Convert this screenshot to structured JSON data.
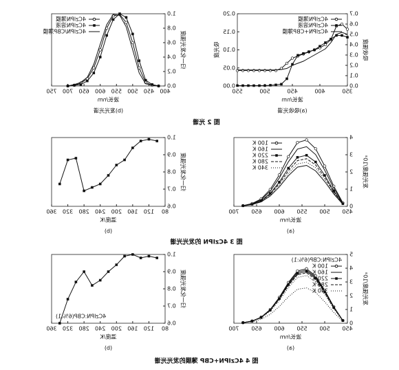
{
  "chart_data": [
    {
      "type": "line",
      "caption": "(a)吸收光谱",
      "xlabel": "波长/nm",
      "ylabel": "吸收强度",
      "y2label": "吸光度",
      "legend": "upper left",
      "x": [
        350,
        360,
        370,
        380,
        390,
        400,
        410,
        420,
        430,
        440,
        450,
        460,
        470,
        480,
        490,
        500,
        510,
        520,
        530,
        540,
        550
      ],
      "xlim": [
        350,
        550
      ],
      "xticks": [
        350,
        400,
        450,
        500,
        550
      ],
      "ylim": [
        0,
        0.7
      ],
      "yticks": [
        {
          "value": 0,
          "label": "0.0"
        },
        0.1,
        0.2,
        0.3,
        0.4,
        0.5,
        0.6,
        0.7
      ],
      "y2lim": [
        0,
        0.2
      ],
      "y2ticks": [
        {
          "value": 0,
          "label": "0.00"
        },
        {
          "value": 0.05,
          "label": "0.05"
        },
        {
          "value": 0.1,
          "label": "0.10"
        },
        {
          "value": 0.15,
          "label": "0.15"
        },
        {
          "value": 0.2,
          "label": "0.20"
        }
      ],
      "series": [
        {
          "name": "4CzIPN薄膜",
          "marker": "circle",
          "values": [
            0.55,
            0.6,
            0.58,
            0.45,
            0.4,
            0.37,
            0.35,
            0.33,
            0.31,
            0.29,
            0.27,
            0.22,
            0.17,
            0.15,
            0.15,
            0.15,
            0.15,
            0.15,
            0.15,
            0.15,
            0.15
          ]
        },
        {
          "name": "4CzIPN溶液",
          "marker": "square",
          "axis": "y2",
          "values": [
            0.135,
            0.14,
            0.14,
            0.13,
            0.12,
            0.11,
            0.1,
            0.095,
            0.09,
            0.085,
            0.06,
            0.02,
            0.005,
            0.003,
            0.002,
            0.001,
            0.001,
            0.001,
            0.001,
            0.001,
            0.001
          ]
        },
        {
          "name": "4CzIPN+CBP薄膜",
          "marker": "none",
          "values": [
            0.5,
            0.52,
            0.5,
            0.42,
            0.36,
            0.33,
            0.3,
            0.27,
            0.24,
            0.22,
            0.2,
            0.17,
            0.16,
            0.155,
            0.155,
            0.155,
            0.155,
            0.155,
            0.155,
            0.155,
            0.155
          ]
        }
      ]
    },
    {
      "type": "line",
      "caption": "(b)发光光谱",
      "xlabel": "波长/nm",
      "ylabel": "归一化发光强度",
      "legend": "upper right",
      "x": [
        420,
        440,
        460,
        480,
        500,
        520,
        540,
        560,
        580,
        600,
        620,
        640,
        660,
        680,
        700
      ],
      "xlim": [
        400,
        750
      ],
      "xticks": [
        400,
        450,
        500,
        550,
        600,
        650,
        700,
        750
      ],
      "ylim": [
        0,
        1
      ],
      "yticks": [
        {
          "value": 0,
          "label": "0.0"
        },
        0.2,
        0.4,
        0.6,
        0.8,
        {
          "value": 1,
          "label": "1.0"
        }
      ],
      "series": [
        {
          "name": "4CzIPN薄膜",
          "marker": "circle",
          "values": [
            0,
            0.01,
            0.05,
            0.25,
            0.6,
            0.88,
            0.99,
            0.97,
            0.8,
            0.5,
            0.25,
            0.1,
            0.04,
            0.01,
            0
          ]
        },
        {
          "name": "4CzIPN溶液",
          "marker": "square",
          "values": [
            0,
            0.02,
            0.08,
            0.35,
            0.72,
            0.95,
            1,
            0.92,
            0.7,
            0.4,
            0.18,
            0.07,
            0.02,
            0.01,
            0
          ]
        },
        {
          "name": "4CzIPN/CBP薄膜",
          "marker": "none",
          "values": [
            0,
            0.01,
            0.03,
            0.18,
            0.5,
            0.82,
            0.98,
            0.99,
            0.85,
            0.58,
            0.3,
            0.12,
            0.05,
            0.02,
            0
          ]
        }
      ]
    },
    {
      "type": "line",
      "caption": "(a)",
      "xlabel": "波长/nm",
      "ylabel": "发光强度/10³",
      "legend": "upper right",
      "x": [
        460,
        480,
        500,
        520,
        540,
        560,
        580,
        600,
        620,
        640,
        660,
        680
      ],
      "xlim": [
        450,
        700
      ],
      "xticks": [
        450,
        500,
        550,
        600,
        650,
        700
      ],
      "ylim": [
        0,
        4
      ],
      "yticks": [
        0,
        1,
        2,
        3,
        4
      ],
      "series": [
        {
          "name": "100 K",
          "marker": "circle",
          "values": [
            0.2,
            1.17,
            2.34,
            3.35,
            3.86,
            3.71,
            2.89,
            1.83,
            0.98,
            0.43,
            0.16,
            0.04
          ]
        },
        {
          "name": "160 K",
          "marker": "none",
          "values": [
            0.18,
            1.05,
            2.1,
            3.01,
            3.47,
            3.33,
            2.59,
            1.65,
            0.88,
            0.39,
            0.14,
            0.04
          ]
        },
        {
          "name": "220 K",
          "marker": "square",
          "values": [
            0.15,
            0.9,
            1.8,
            2.58,
            2.97,
            2.85,
            2.22,
            1.41,
            0.75,
            0.33,
            0.12,
            0.03
          ]
        },
        {
          "name": "280 K",
          "marker": "none",
          "dash": "4 2",
          "values": [
            0.14,
            0.84,
            1.68,
            2.41,
            2.77,
            2.66,
            2.07,
            1.32,
            0.7,
            0.31,
            0.11,
            0.03
          ]
        },
        {
          "name": "340 K",
          "marker": "none",
          "dash": "1 2",
          "values": [
            0.13,
            0.78,
            1.56,
            2.24,
            2.57,
            2.47,
            1.92,
            1.22,
            0.65,
            0.29,
            0.1,
            0.03
          ]
        },
        {
          "name": "",
          "marker": "none",
          "values": [
            0.12,
            0.72,
            1.44,
            2.06,
            2.38,
            2.28,
            1.78,
            1.13,
            0.6,
            0.26,
            0.1,
            0.02
          ]
        }
      ]
    },
    {
      "type": "line",
      "caption": "(b)",
      "xlabel": "温度/K",
      "ylabel": "归一化发光强度",
      "x": [
        340,
        320,
        300,
        280,
        260,
        240,
        220,
        200,
        180,
        160,
        140,
        120,
        100
      ],
      "xlim": [
        80,
        360
      ],
      "xticks": [
        80,
        120,
        160,
        200,
        240,
        280,
        320,
        360
      ],
      "ylim": [
        0.6,
        1
      ],
      "yticks": [
        0.6,
        0.7,
        0.8,
        0.9,
        {
          "value": 1,
          "label": "1.0"
        }
      ],
      "series": [
        {
          "marker": "square",
          "values": [
            0.73,
            0.87,
            0.88,
            0.69,
            0.71,
            0.73,
            0.78,
            0.84,
            0.87,
            0.94,
            0.98,
            0.99,
            0.98
          ]
        }
      ]
    },
    {
      "type": "line",
      "caption": "(a)",
      "xlabel": "波长/nm",
      "ylabel": "发光强度/10³",
      "legend": "upper left",
      "legend_title": "4CzIPN:CBP(6%:1)",
      "x": [
        460,
        480,
        500,
        520,
        540,
        560,
        580,
        600,
        620,
        640,
        660,
        680
      ],
      "xlim": [
        450,
        700
      ],
      "xticks": [
        450,
        500,
        550,
        600,
        650,
        700
      ],
      "ylim": [
        0,
        5
      ],
      "yticks": [
        0,
        1,
        2,
        3,
        4,
        5
      ],
      "series": [
        {
          "name": "100 K",
          "marker": "circle",
          "values": [
            0.2,
            1.2,
            2.4,
            3.44,
            3.96,
            3.8,
            2.96,
            1.88,
            1,
            0.44,
            0.16,
            0.04
          ]
        },
        {
          "name": "160 K",
          "marker": "none",
          "values": [
            0.2,
            1.17,
            2.34,
            3.35,
            3.86,
            3.71,
            2.89,
            1.83,
            0.98,
            0.43,
            0.16,
            0.04
          ]
        },
        {
          "name": "220 K",
          "marker": "square",
          "values": [
            0.19,
            1.14,
            2.28,
            3.27,
            3.76,
            3.61,
            2.81,
            1.79,
            0.95,
            0.42,
            0.15,
            0.04
          ]
        },
        {
          "name": "280 K",
          "marker": "none",
          "dash": "4 2",
          "values": [
            0.19,
            1.11,
            2.22,
            3.18,
            3.66,
            3.52,
            2.74,
            1.74,
            0.93,
            0.41,
            0.15,
            0.04
          ]
        },
        {
          "name": "340 K",
          "marker": "none",
          "dash": "1 2",
          "values": [
            0.18,
            1.05,
            2.1,
            3.01,
            3.47,
            3.33,
            2.59,
            1.65,
            0.88,
            0.39,
            0.14,
            0.04
          ]
        },
        {
          "marker": "none",
          "dash": "1 2",
          "values": [
            0.13,
            0.78,
            1.56,
            2.24,
            2.57,
            2.47,
            1.92,
            1.22,
            0.65,
            0.29,
            0.1,
            0.03
          ]
        }
      ]
    },
    {
      "type": "line",
      "caption": "(b)",
      "xlabel": "温度/K",
      "ylabel": "归一化发光强度",
      "annotation": "4CzIPN:CBP(6%:1)",
      "x": [
        340,
        320,
        300,
        280,
        260,
        240,
        220,
        200,
        180,
        160,
        140,
        120,
        100
      ],
      "xlim": [
        80,
        360
      ],
      "xticks": [
        80,
        120,
        160,
        200,
        240,
        280,
        320,
        360
      ],
      "ylim": [
        0.6,
        1
      ],
      "yticks": [
        0.6,
        0.7,
        0.8,
        0.9,
        {
          "value": 1,
          "label": "1.0"
        }
      ],
      "series": [
        {
          "marker": "square",
          "values": [
            0.6,
            0.74,
            0.84,
            0.9,
            0.82,
            0.85,
            0.9,
            0.94,
            0.99,
            1,
            0.98,
            0.99,
            0.98
          ]
        }
      ]
    }
  ],
  "figure_captions": [
    "图 2  光谱",
    "图 3  4CzIPN 的发光光谱",
    "图 4  4CzIPN+CBP 薄膜的发光光谱"
  ]
}
